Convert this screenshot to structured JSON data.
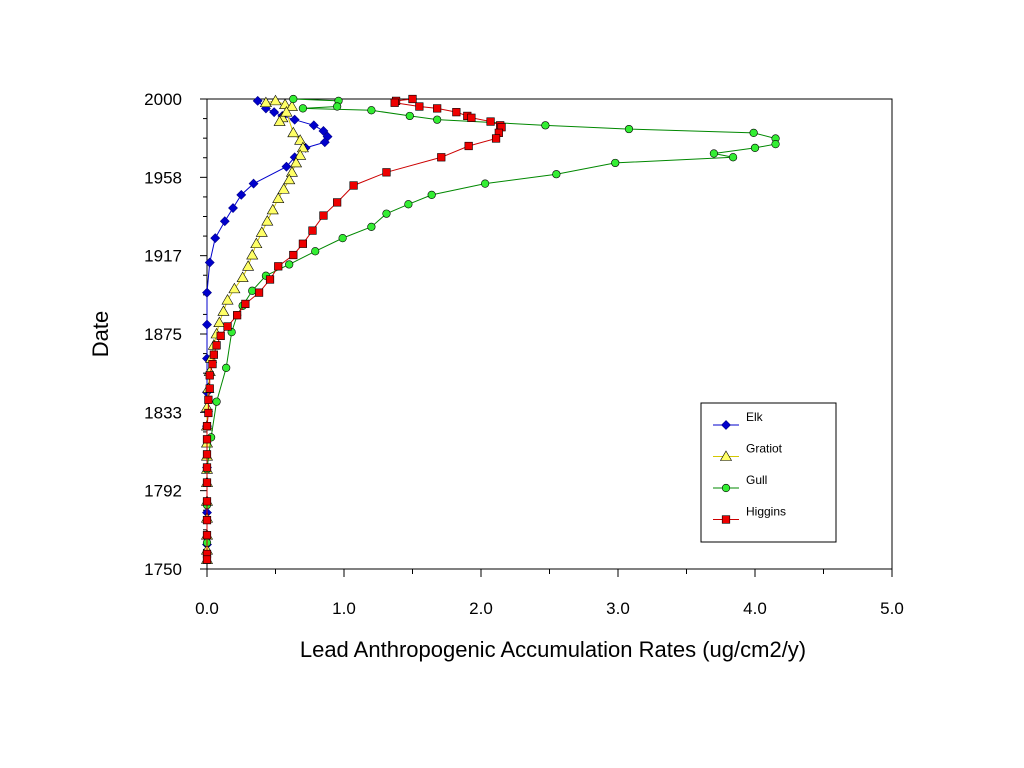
{
  "chart_data": {
    "type": "scatter",
    "title": "",
    "xlabel": "Lead Anthropogenic Accumulation Rates (ug/cm2/y)",
    "ylabel": "Date",
    "xlim": [
      0,
      5
    ],
    "ylim": [
      1750,
      2000
    ],
    "x_ticks": [
      "0.0",
      "1.0",
      "2.0",
      "3.0",
      "4.0",
      "5.0"
    ],
    "y_ticks": [
      "1750",
      "1792",
      "1833",
      "1875",
      "1917",
      "1958",
      "2000"
    ],
    "grid": false,
    "legend_position": "bottom-right",
    "series": [
      {
        "name": "Elk",
        "color": "#0000cc",
        "line_color": "#0000cc",
        "marker": "diamond",
        "points": [
          [
            0.37,
            1999
          ],
          [
            0.43,
            1995
          ],
          [
            0.49,
            1993
          ],
          [
            0.55,
            1991
          ],
          [
            0.64,
            1989
          ],
          [
            0.78,
            1986
          ],
          [
            0.85,
            1983
          ],
          [
            0.88,
            1980
          ],
          [
            0.86,
            1977
          ],
          [
            0.72,
            1974
          ],
          [
            0.64,
            1969
          ],
          [
            0.58,
            1964
          ],
          [
            0.34,
            1955
          ],
          [
            0.25,
            1949
          ],
          [
            0.19,
            1942
          ],
          [
            0.13,
            1935
          ],
          [
            0.06,
            1926
          ],
          [
            0.02,
            1913
          ],
          [
            0.0,
            1897
          ],
          [
            0.0,
            1880
          ],
          [
            0.0,
            1862
          ],
          [
            0.0,
            1844
          ],
          [
            0.0,
            1826
          ],
          [
            0.0,
            1804
          ],
          [
            0.0,
            1780
          ],
          [
            0.0,
            1763
          ]
        ]
      },
      {
        "name": "Gratiot",
        "color": "#ffff66",
        "line_color": "#d4c800",
        "marker": "triangle",
        "points": [
          [
            0.43,
            1998
          ],
          [
            0.5,
            1999
          ],
          [
            0.57,
            1997
          ],
          [
            0.62,
            1996
          ],
          [
            0.55,
            1990
          ],
          [
            0.53,
            1988
          ],
          [
            0.58,
            1993
          ],
          [
            0.63,
            1982
          ],
          [
            0.68,
            1978
          ],
          [
            0.7,
            1974
          ],
          [
            0.68,
            1970
          ],
          [
            0.65,
            1966
          ],
          [
            0.62,
            1961
          ],
          [
            0.6,
            1957
          ],
          [
            0.56,
            1952
          ],
          [
            0.52,
            1947
          ],
          [
            0.48,
            1941
          ],
          [
            0.44,
            1935
          ],
          [
            0.4,
            1929
          ],
          [
            0.36,
            1923
          ],
          [
            0.33,
            1917
          ],
          [
            0.3,
            1911
          ],
          [
            0.26,
            1905
          ],
          [
            0.2,
            1899
          ],
          [
            0.15,
            1893
          ],
          [
            0.12,
            1887
          ],
          [
            0.09,
            1881
          ],
          [
            0.07,
            1875
          ],
          [
            0.05,
            1869
          ],
          [
            0.03,
            1862
          ],
          [
            0.02,
            1855
          ],
          [
            0.01,
            1846
          ],
          [
            0.0,
            1836
          ],
          [
            0.0,
            1826
          ],
          [
            0.0,
            1817
          ],
          [
            0.0,
            1810
          ],
          [
            0.0,
            1803
          ],
          [
            0.0,
            1796
          ],
          [
            0.0,
            1786
          ],
          [
            0.0,
            1777
          ],
          [
            0.0,
            1768
          ],
          [
            0.0,
            1760
          ],
          [
            0.0,
            1755
          ]
        ]
      },
      {
        "name": "Gull",
        "color": "#33ee33",
        "line_color": "#008800",
        "marker": "circle",
        "points": [
          [
            0.63,
            2000
          ],
          [
            0.96,
            1999
          ],
          [
            0.95,
            1996
          ],
          [
            0.7,
            1995
          ],
          [
            1.2,
            1994
          ],
          [
            1.48,
            1991
          ],
          [
            1.68,
            1989
          ],
          [
            2.47,
            1986
          ],
          [
            3.08,
            1984
          ],
          [
            3.99,
            1982
          ],
          [
            4.15,
            1979
          ],
          [
            4.15,
            1976
          ],
          [
            4.0,
            1974
          ],
          [
            3.7,
            1971
          ],
          [
            3.84,
            1969
          ],
          [
            2.98,
            1966
          ],
          [
            2.55,
            1960
          ],
          [
            2.03,
            1955
          ],
          [
            1.64,
            1949
          ],
          [
            1.47,
            1944
          ],
          [
            1.31,
            1939
          ],
          [
            1.2,
            1932
          ],
          [
            0.99,
            1926
          ],
          [
            0.79,
            1919
          ],
          [
            0.6,
            1912
          ],
          [
            0.43,
            1906
          ],
          [
            0.33,
            1898
          ],
          [
            0.26,
            1890
          ],
          [
            0.22,
            1885
          ],
          [
            0.18,
            1876
          ],
          [
            0.14,
            1857
          ],
          [
            0.07,
            1839
          ],
          [
            0.03,
            1820
          ],
          [
            0.0,
            1803
          ],
          [
            0.0,
            1784
          ],
          [
            0.0,
            1764
          ]
        ]
      },
      {
        "name": "Higgins",
        "color": "#ee0000",
        "line_color": "#cc0000",
        "marker": "square",
        "points": [
          [
            1.5,
            2000
          ],
          [
            1.38,
            1999
          ],
          [
            1.37,
            1998
          ],
          [
            1.55,
            1996
          ],
          [
            1.68,
            1995
          ],
          [
            1.82,
            1993
          ],
          [
            1.9,
            1991
          ],
          [
            1.93,
            1990
          ],
          [
            2.07,
            1988
          ],
          [
            2.14,
            1986
          ],
          [
            2.15,
            1985
          ],
          [
            2.13,
            1982
          ],
          [
            2.11,
            1979
          ],
          [
            1.91,
            1975
          ],
          [
            1.71,
            1969
          ],
          [
            1.31,
            1961
          ],
          [
            1.07,
            1954
          ],
          [
            0.95,
            1945
          ],
          [
            0.85,
            1938
          ],
          [
            0.77,
            1930
          ],
          [
            0.7,
            1923
          ],
          [
            0.63,
            1917
          ],
          [
            0.52,
            1911
          ],
          [
            0.46,
            1904
          ],
          [
            0.38,
            1897
          ],
          [
            0.28,
            1891
          ],
          [
            0.22,
            1885
          ],
          [
            0.15,
            1879
          ],
          [
            0.1,
            1874
          ],
          [
            0.07,
            1869
          ],
          [
            0.05,
            1864
          ],
          [
            0.04,
            1859
          ],
          [
            0.02,
            1853
          ],
          [
            0.02,
            1846
          ],
          [
            0.01,
            1840
          ],
          [
            0.01,
            1833
          ],
          [
            0.0,
            1826
          ],
          [
            0.0,
            1819
          ],
          [
            0.0,
            1811
          ],
          [
            0.0,
            1804
          ],
          [
            0.0,
            1796
          ],
          [
            0.0,
            1786
          ],
          [
            0.0,
            1776
          ],
          [
            0.0,
            1768
          ],
          [
            0.0,
            1758
          ],
          [
            0.0,
            1755
          ]
        ]
      }
    ]
  }
}
